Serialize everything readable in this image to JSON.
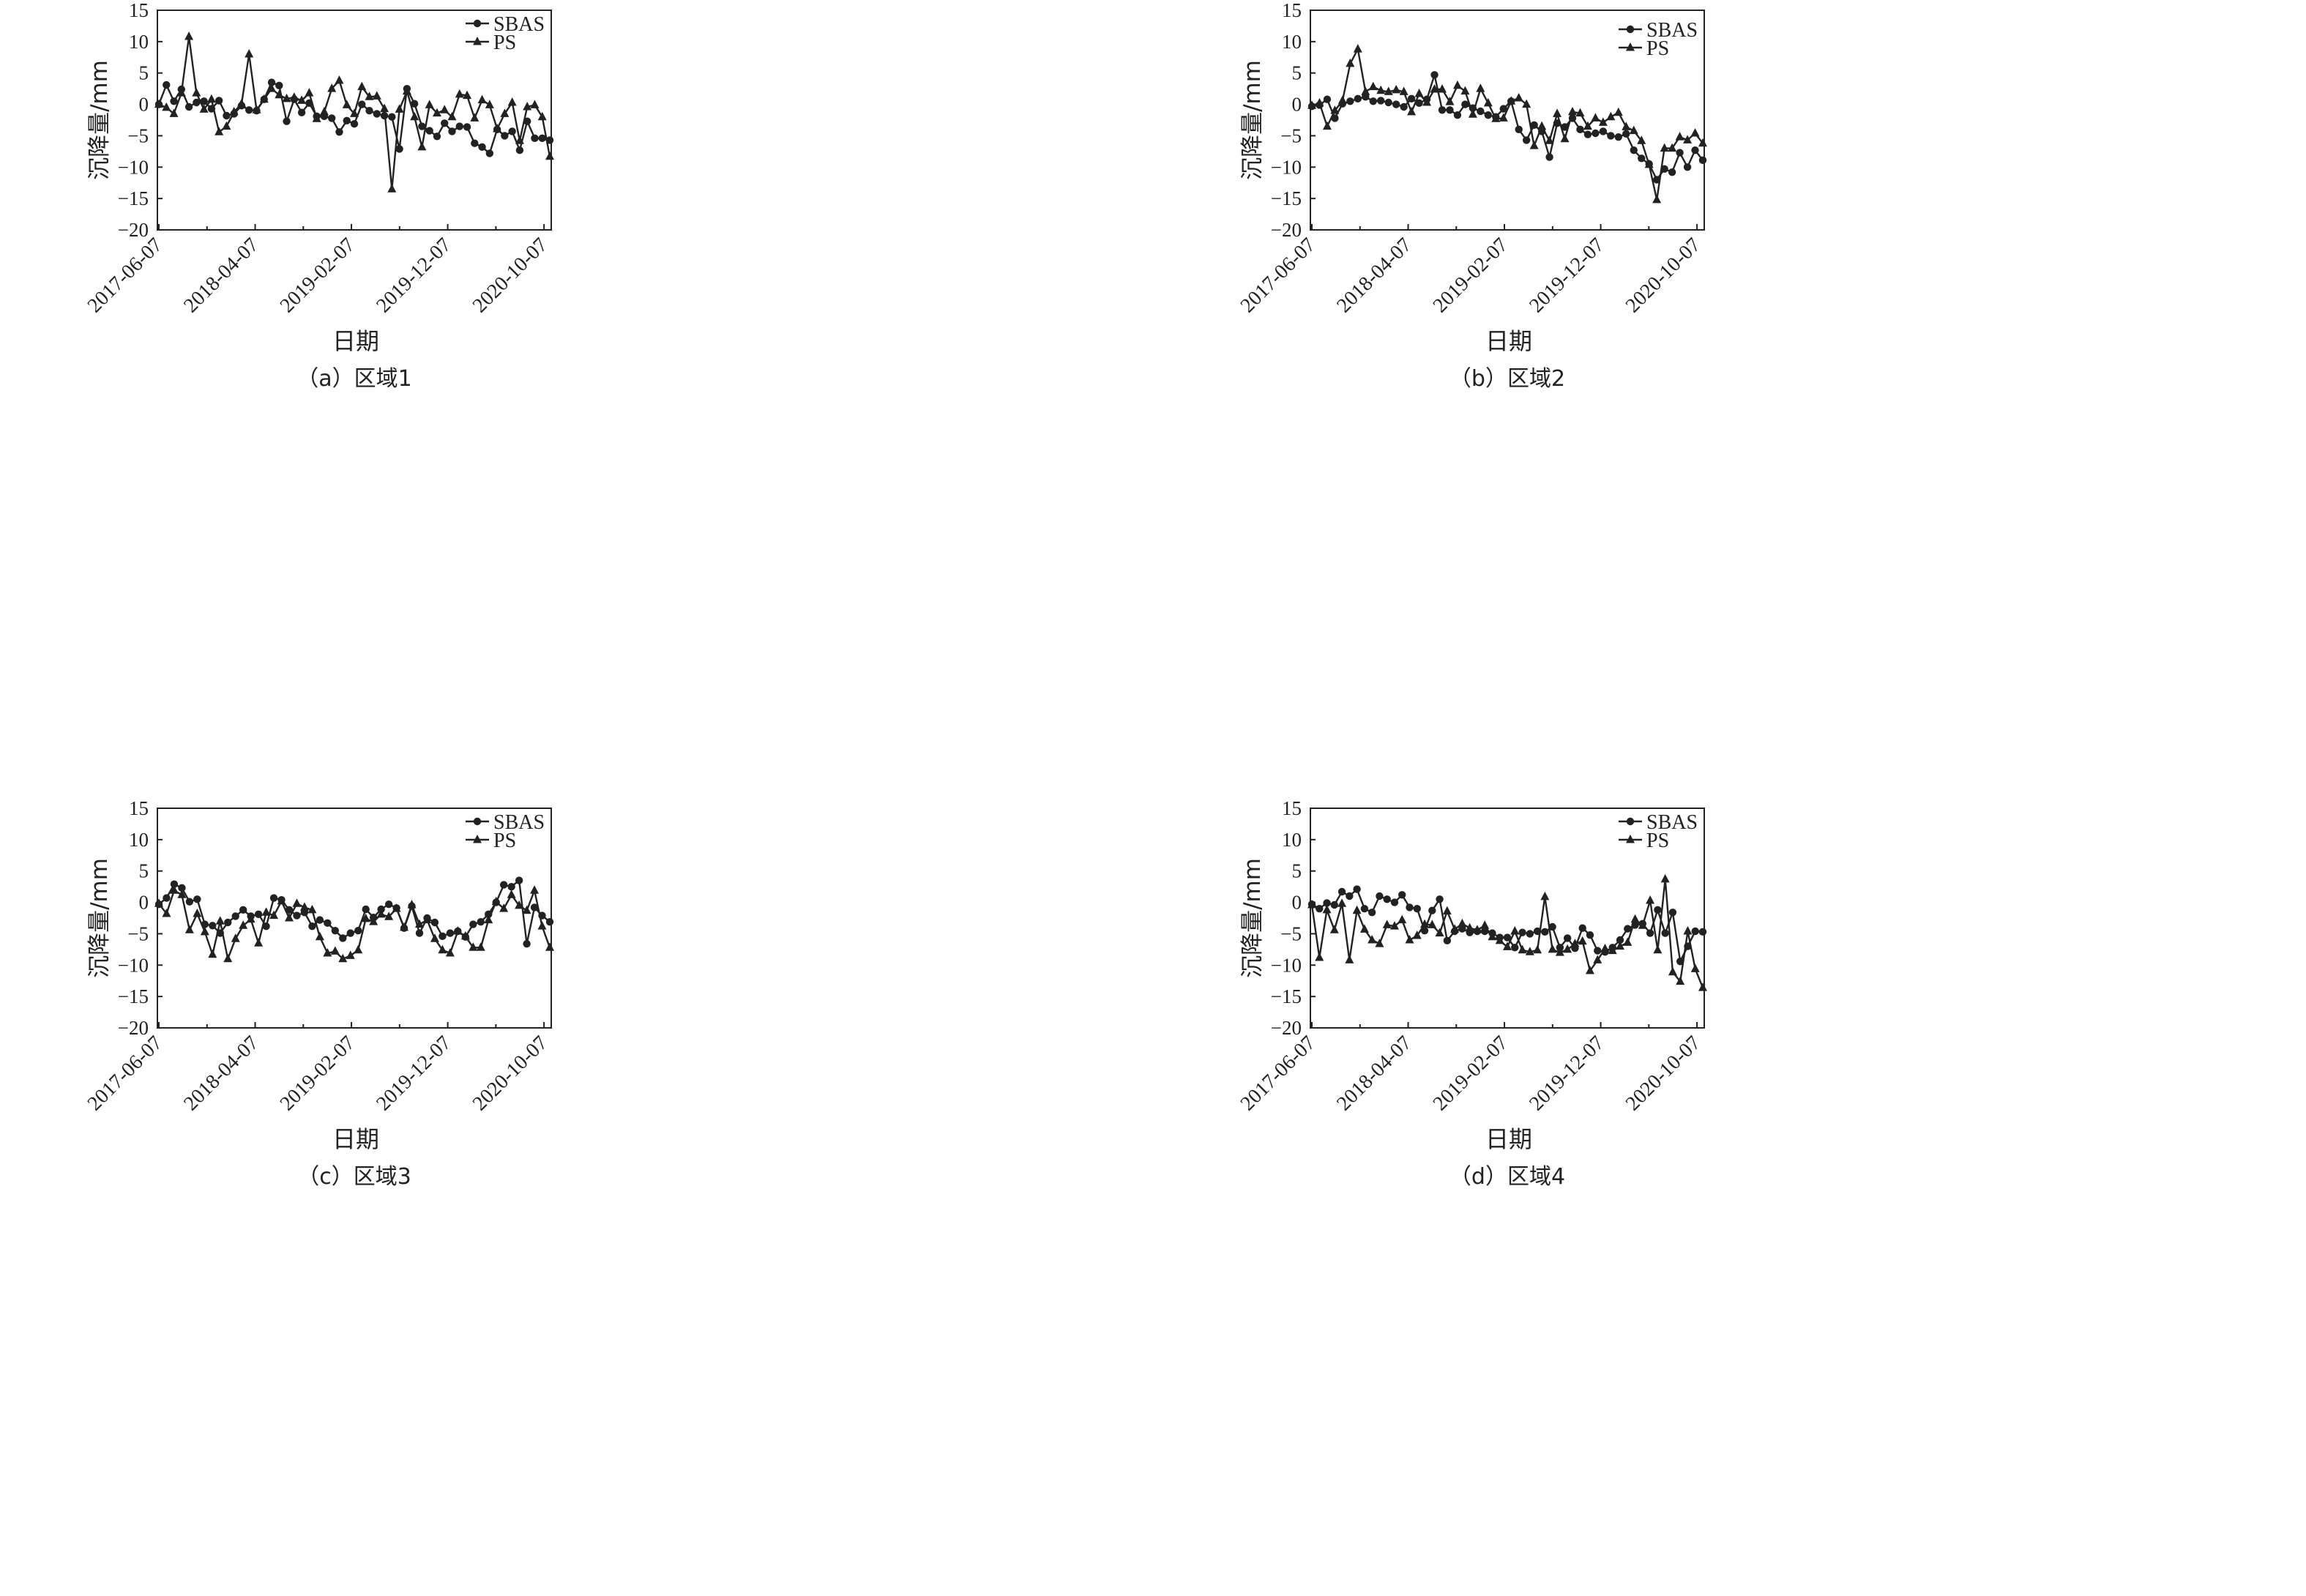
{
  "chart_data": [
    {
      "type": "line",
      "caption": "（a）区域1",
      "xlabel": "日期",
      "ylabel": "沉降量/mm",
      "ylim": [
        -20,
        15
      ],
      "yticks": [
        15,
        10,
        5,
        0,
        -5,
        -10,
        -15,
        -20
      ],
      "xticks": [
        "2017-06-07",
        "2018-04-07",
        "2019-02-07",
        "2019-12-07",
        "2020-10-07"
      ],
      "legend_position": "top-right",
      "series": [
        {
          "name": "SBAS",
          "marker": "circle",
          "values": [
            0.0,
            3.1,
            0.5,
            2.4,
            -0.4,
            0.3,
            0.5,
            -0.7,
            0.6,
            -1.8,
            -1.5,
            -0.2,
            -0.9,
            -1.0,
            0.8,
            3.5,
            3.0,
            -2.7,
            0.8,
            -1.3,
            0.2,
            -1.9,
            -1.9,
            -2.2,
            -4.4,
            -2.6,
            -3.1,
            0.0,
            -1.0,
            -1.5,
            -1.8,
            -2.0,
            -7.1,
            2.5,
            0.1,
            -3.5,
            -4.2,
            -5.1,
            -3.0,
            -4.3,
            -3.5,
            -3.6,
            -6.2,
            -6.8,
            -7.8,
            -4.0,
            -5.0,
            -4.3,
            -7.3,
            -2.7,
            -5.4,
            -5.4,
            -5.7
          ]
        },
        {
          "name": "PS",
          "marker": "triangle",
          "values": [
            0.0,
            -0.5,
            -1.5,
            1.8,
            10.8,
            1.8,
            -0.8,
            0.8,
            -4.4,
            -3.5,
            -1.2,
            0.1,
            8.0,
            -0.9,
            0.8,
            2.5,
            1.5,
            0.9,
            1.1,
            0.6,
            1.8,
            -2.3,
            -1.2,
            2.5,
            3.8,
            -0.1,
            -1.5,
            2.8,
            1.2,
            1.3,
            -0.7,
            -13.5,
            -0.8,
            2.1,
            -2.0,
            -6.8,
            -0.1,
            -1.4,
            -0.9,
            -2.0,
            1.6,
            1.4,
            -2.2,
            0.7,
            -0.1,
            -3.9,
            -1.5,
            0.3,
            -5.8,
            -0.4,
            -0.1,
            -2.0,
            -8.3
          ]
        }
      ]
    },
    {
      "type": "line",
      "caption": "（b）区域2",
      "xlabel": "日期",
      "ylabel": "沉降量/mm",
      "ylim": [
        -20,
        15
      ],
      "yticks": [
        15,
        10,
        5,
        0,
        -5,
        -10,
        -15,
        -20
      ],
      "xticks": [
        "2017-06-07",
        "2018-04-07",
        "2019-02-07",
        "2019-12-07",
        "2020-10-07"
      ],
      "legend_position": "top-right",
      "series": [
        {
          "name": "SBAS",
          "marker": "circle",
          "values": [
            -0.3,
            -0.1,
            0.8,
            -2.2,
            0.1,
            0.5,
            0.9,
            1.2,
            0.5,
            0.6,
            0.3,
            0.0,
            -0.4,
            0.9,
            0.2,
            0.8,
            4.7,
            -0.9,
            -0.9,
            -1.7,
            0.0,
            -0.6,
            -1.1,
            -1.7,
            -2.0,
            -0.7,
            0.5,
            -4.0,
            -5.7,
            -3.3,
            -4.3,
            -8.4,
            -3.0,
            -3.6,
            -2.2,
            -4.0,
            -4.8,
            -4.6,
            -4.3,
            -5.0,
            -5.2,
            -4.7,
            -7.3,
            -8.6,
            -9.5,
            -12.0,
            -10.3,
            -10.8,
            -7.7,
            -10.0,
            -7.3,
            -8.9
          ]
        },
        {
          "name": "PS",
          "marker": "triangle",
          "values": [
            -0.2,
            0.2,
            -3.5,
            -1.0,
            0.6,
            6.5,
            8.8,
            2.0,
            2.8,
            2.2,
            2.0,
            2.3,
            2.0,
            -1.2,
            1.7,
            0.3,
            2.4,
            2.4,
            0.4,
            3.0,
            2.1,
            -1.6,
            2.5,
            0.2,
            -2.3,
            -2.2,
            0.5,
            1.0,
            0.0,
            -6.6,
            -3.5,
            -5.8,
            -1.5,
            -5.5,
            -1.2,
            -1.4,
            -3.5,
            -2.2,
            -2.9,
            -2.0,
            -1.3,
            -3.6,
            -4.2,
            -5.8,
            -9.6,
            -15.2,
            -7.0,
            -7.0,
            -5.2,
            -5.7,
            -4.6,
            -6.2
          ]
        }
      ]
    },
    {
      "type": "line",
      "caption": "（c）区域3",
      "xlabel": "日期",
      "ylabel": "沉降量/mm",
      "ylim": [
        -20,
        15
      ],
      "yticks": [
        15,
        10,
        5,
        0,
        -5,
        -10,
        -15,
        -20
      ],
      "xticks": [
        "2017-06-07",
        "2018-04-07",
        "2019-02-07",
        "2019-12-07",
        "2020-10-07"
      ],
      "legend_position": "top-right",
      "series": [
        {
          "name": "SBAS",
          "marker": "circle",
          "values": [
            -0.3,
            0.7,
            2.9,
            2.3,
            0.1,
            0.5,
            -3.5,
            -3.7,
            -4.9,
            -3.2,
            -2.2,
            -1.2,
            -2.2,
            -1.9,
            -3.8,
            0.7,
            0.4,
            -1.2,
            -2.1,
            -1.6,
            -3.8,
            -2.8,
            -3.3,
            -4.5,
            -5.7,
            -4.9,
            -4.5,
            -1.1,
            -2.4,
            -1.1,
            -0.3,
            -0.9,
            -4.1,
            -0.6,
            -4.9,
            -2.5,
            -3.2,
            -5.4,
            -4.9,
            -4.6,
            -5.5,
            -3.5,
            -3.1,
            -1.9,
            0.0,
            2.8,
            2.5,
            3.5,
            -6.6,
            -0.8,
            -2.1,
            -3.1
          ]
        },
        {
          "name": "PS",
          "marker": "triangle",
          "values": [
            -0.2,
            -1.8,
            1.9,
            1.2,
            -4.4,
            -1.8,
            -4.7,
            -8.3,
            -3.0,
            -9.0,
            -5.8,
            -3.7,
            -2.7,
            -6.5,
            -1.6,
            -2.1,
            0.2,
            -2.5,
            -0.2,
            -0.8,
            -1.2,
            -5.5,
            -8.1,
            -7.8,
            -9.0,
            -8.5,
            -7.6,
            -2.6,
            -3.1,
            -1.9,
            -2.3,
            -1.0,
            -4.0,
            -0.4,
            -3.5,
            -2.8,
            -5.8,
            -7.6,
            -8.1,
            -4.6,
            -5.4,
            -7.2,
            -7.2,
            -2.8,
            0.1,
            -1.0,
            1.2,
            -0.5,
            -1.3,
            1.9,
            -3.8,
            -7.2
          ]
        }
      ]
    },
    {
      "type": "line",
      "caption": "（d）区域4",
      "xlabel": "日期",
      "ylabel": "沉降量/mm",
      "ylim": [
        -20,
        15
      ],
      "yticks": [
        15,
        10,
        5,
        0,
        -5,
        -10,
        -15,
        -20
      ],
      "xticks": [
        "2017-06-07",
        "2018-04-07",
        "2019-02-07",
        "2019-12-07",
        "2020-10-07"
      ],
      "legend_position": "top-right",
      "series": [
        {
          "name": "SBAS",
          "marker": "circle",
          "values": [
            -0.3,
            -1.0,
            -0.1,
            -0.4,
            1.7,
            1.0,
            2.1,
            -1.0,
            -1.6,
            1.0,
            0.5,
            0.0,
            1.2,
            -0.8,
            -1.0,
            -4.5,
            -1.3,
            0.5,
            -6.1,
            -4.6,
            -4.2,
            -4.8,
            -4.6,
            -4.6,
            -4.9,
            -5.6,
            -5.6,
            -7.2,
            -4.8,
            -5.0,
            -4.6,
            -4.7,
            -3.9,
            -7.2,
            -5.7,
            -7.3,
            -4.1,
            -5.2,
            -7.7,
            -7.9,
            -7.2,
            -6.0,
            -4.2,
            -3.6,
            -3.4,
            -4.9,
            -1.2,
            -4.9,
            -1.6,
            -9.4,
            -7.0,
            -4.6,
            -4.7
          ]
        },
        {
          "name": "PS",
          "marker": "triangle",
          "values": [
            -0.4,
            -8.8,
            -1.2,
            -4.4,
            -0.2,
            -9.2,
            -1.3,
            -4.3,
            -6.0,
            -6.6,
            -3.6,
            -3.8,
            -2.8,
            -6.0,
            -5.3,
            -3.5,
            -3.6,
            -4.9,
            -1.4,
            -4.3,
            -3.4,
            -4.1,
            -4.4,
            -3.7,
            -5.5,
            -6.1,
            -7.1,
            -4.6,
            -7.6,
            -7.9,
            -7.6,
            0.9,
            -7.5,
            -8.0,
            -7.5,
            -6.6,
            -6.2,
            -10.9,
            -9.2,
            -7.4,
            -7.7,
            -7.0,
            -6.4,
            -2.7,
            -3.7,
            0.3,
            -7.6,
            3.7,
            -11.1,
            -12.6,
            -4.6,
            -10.6,
            -13.6
          ]
        }
      ]
    }
  ]
}
